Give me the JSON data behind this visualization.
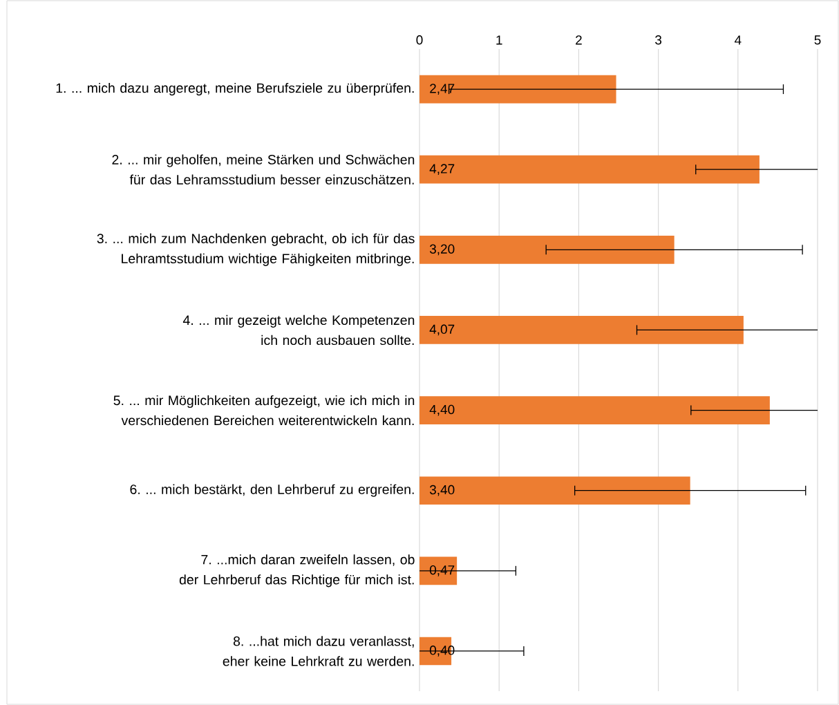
{
  "chart_data": {
    "type": "bar",
    "orientation": "horizontal",
    "categories": [
      "1. ... mich dazu angeregt, meine Berufsziele zu überprüfen.",
      "2. ... mir geholfen, meine Stärken und Schwächen für das Lehramsstudium besser einzuschätzen.",
      "3. ... mich zum Nachdenken gebracht, ob ich für das Lehramtsstudium wichtige Fähigkeiten mitbringe.",
      "4. ... mir gezeigt welche Kompetenzen ich noch ausbauen sollte.",
      "5. ... mir Möglichkeiten aufgezeigt, wie ich mich in verschiedenen Bereichen weiterentwickeln kann.",
      "6. ... mich bestärkt, den Lehrberuf zu ergreifen.",
      "7. ...mich daran zweifeln lassen, ob der Lehrberuf das Richtige für mich ist.",
      "8. ...hat mich dazu veranlasst, eher keine Lehrkraft zu werden."
    ],
    "values": [
      2.47,
      4.27,
      3.2,
      4.07,
      4.4,
      3.4,
      0.47,
      0.4
    ],
    "value_labels": [
      "2,47",
      "4,27",
      "3,20",
      "4,07",
      "4,40",
      "3,40",
      "0,47",
      "0,40"
    ],
    "errors": [
      2.1,
      [
        3.47,
        5
      ],
      1.61,
      [
        2.73,
        5
      ],
      [
        3.41,
        5
      ],
      1.45,
      [
        0,
        1.21
      ],
      [
        0,
        1.31
      ]
    ],
    "color": "#ed7d31",
    "xlim": [
      0,
      5
    ],
    "xticks": [
      0,
      1,
      2,
      3,
      4,
      5
    ],
    "grid": "x"
  }
}
